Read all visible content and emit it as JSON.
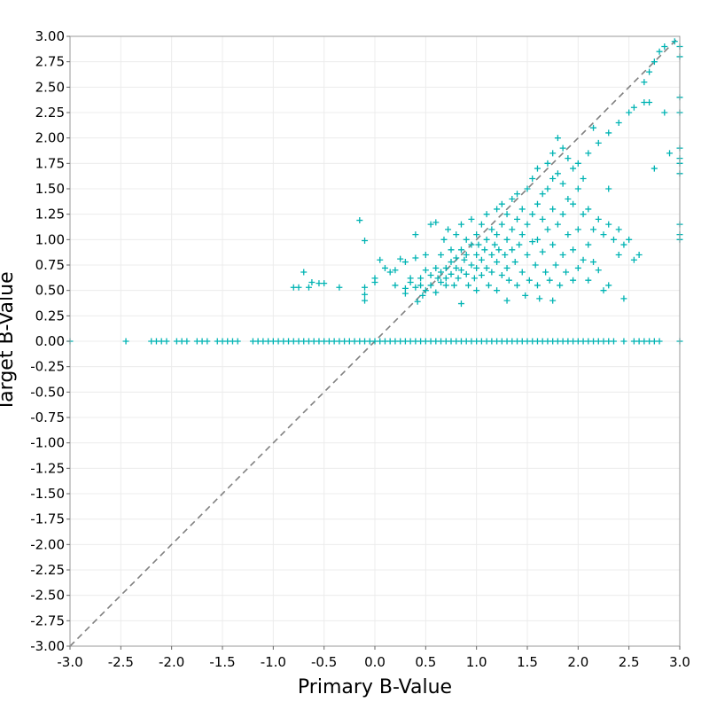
{
  "chart_data": {
    "type": "scatter",
    "xlabel": "Primary B-Value",
    "ylabel": "Target B-Value",
    "xlim": [
      -3.0,
      3.0
    ],
    "ylim": [
      -3.0,
      3.0
    ],
    "x_ticks": [
      "-3.0",
      "-2.5",
      "-2.0",
      "-1.5",
      "-1.0",
      "-0.5",
      "0.0",
      "0.5",
      "1.0",
      "1.5",
      "2.0",
      "2.5",
      "3.0"
    ],
    "y_ticks": [
      "3.00",
      "2.75",
      "2.50",
      "2.25",
      "2.00",
      "1.75",
      "1.50",
      "1.25",
      "1.00",
      "0.75",
      "0.50",
      "0.25",
      "0.00",
      "-0.25",
      "-0.50",
      "-0.75",
      "-1.00",
      "-1.25",
      "-1.50",
      "-1.75",
      "-2.00",
      "-2.25",
      "-2.50",
      "-2.75",
      "-3.00"
    ],
    "grid": true,
    "marker": "plus",
    "colors": {
      "points": "#00b3b3",
      "diagonal": "#808080",
      "grid": "#ececec",
      "frame": "#999999"
    },
    "reference_line": {
      "style": "dashed",
      "x": [
        -3.0,
        3.0
      ],
      "y": [
        -3.0,
        3.0
      ]
    },
    "series": [
      {
        "values": [
          [
            -3.0,
            0.0
          ],
          [
            -2.45,
            0.0
          ],
          [
            -2.2,
            0.0
          ],
          [
            -2.15,
            0.0
          ],
          [
            -2.1,
            0.0
          ],
          [
            -2.05,
            0.0
          ],
          [
            -1.95,
            0.0
          ],
          [
            -1.9,
            0.0
          ],
          [
            -1.85,
            0.0
          ],
          [
            -1.75,
            0.0
          ],
          [
            -1.7,
            0.0
          ],
          [
            -1.65,
            0.0
          ],
          [
            -1.55,
            0.0
          ],
          [
            -1.5,
            0.0
          ],
          [
            -1.45,
            0.0
          ],
          [
            -1.4,
            0.0
          ],
          [
            -1.35,
            0.0
          ],
          [
            -1.2,
            0.0
          ],
          [
            -1.15,
            0.0
          ],
          [
            -1.1,
            0.0
          ],
          [
            -1.05,
            0.0
          ],
          [
            -1.0,
            0.0
          ],
          [
            -0.95,
            0.0
          ],
          [
            -0.9,
            0.0
          ],
          [
            -0.85,
            0.0
          ],
          [
            -0.8,
            0.0
          ],
          [
            -0.75,
            0.0
          ],
          [
            -0.7,
            0.0
          ],
          [
            -0.65,
            0.0
          ],
          [
            -0.6,
            0.0
          ],
          [
            -0.55,
            0.0
          ],
          [
            -0.5,
            0.0
          ],
          [
            -0.45,
            0.0
          ],
          [
            -0.4,
            0.0
          ],
          [
            -0.35,
            0.0
          ],
          [
            -0.3,
            0.0
          ],
          [
            -0.25,
            0.0
          ],
          [
            -0.2,
            0.0
          ],
          [
            -0.15,
            0.0
          ],
          [
            -0.1,
            0.0
          ],
          [
            -0.05,
            0.0
          ],
          [
            0.0,
            0.0
          ],
          [
            0.05,
            0.0
          ],
          [
            0.1,
            0.0
          ],
          [
            0.15,
            0.0
          ],
          [
            0.2,
            0.0
          ],
          [
            0.25,
            0.0
          ],
          [
            0.3,
            0.0
          ],
          [
            0.35,
            0.0
          ],
          [
            0.4,
            0.0
          ],
          [
            0.45,
            0.0
          ],
          [
            0.5,
            0.0
          ],
          [
            0.55,
            0.0
          ],
          [
            0.6,
            0.0
          ],
          [
            0.65,
            0.0
          ],
          [
            0.7,
            0.0
          ],
          [
            0.75,
            0.0
          ],
          [
            0.8,
            0.0
          ],
          [
            0.85,
            0.0
          ],
          [
            0.9,
            0.0
          ],
          [
            0.95,
            0.0
          ],
          [
            1.0,
            0.0
          ],
          [
            1.05,
            0.0
          ],
          [
            1.1,
            0.0
          ],
          [
            1.15,
            0.0
          ],
          [
            1.2,
            0.0
          ],
          [
            1.25,
            0.0
          ],
          [
            1.3,
            0.0
          ],
          [
            1.35,
            0.0
          ],
          [
            1.4,
            0.0
          ],
          [
            1.45,
            0.0
          ],
          [
            1.5,
            0.0
          ],
          [
            1.55,
            0.0
          ],
          [
            1.6,
            0.0
          ],
          [
            1.65,
            0.0
          ],
          [
            1.7,
            0.0
          ],
          [
            1.75,
            0.0
          ],
          [
            1.8,
            0.0
          ],
          [
            1.85,
            0.0
          ],
          [
            1.9,
            0.0
          ],
          [
            1.95,
            0.0
          ],
          [
            2.0,
            0.0
          ],
          [
            2.05,
            0.0
          ],
          [
            2.1,
            0.0
          ],
          [
            2.15,
            0.0
          ],
          [
            2.2,
            0.0
          ],
          [
            2.25,
            0.0
          ],
          [
            2.3,
            0.0
          ],
          [
            2.35,
            0.0
          ],
          [
            2.45,
            0.0
          ],
          [
            2.55,
            0.0
          ],
          [
            2.6,
            0.0
          ],
          [
            2.65,
            0.0
          ],
          [
            2.7,
            0.0
          ],
          [
            2.75,
            0.0
          ],
          [
            2.8,
            0.0
          ],
          [
            3.0,
            0.0
          ],
          [
            -0.8,
            0.53
          ],
          [
            -0.75,
            0.53
          ],
          [
            -0.7,
            0.68
          ],
          [
            -0.65,
            0.53
          ],
          [
            -0.62,
            0.58
          ],
          [
            -0.55,
            0.57
          ],
          [
            -0.5,
            0.57
          ],
          [
            -0.35,
            0.53
          ],
          [
            -0.15,
            1.19
          ],
          [
            -0.1,
            0.99
          ],
          [
            -0.1,
            0.53
          ],
          [
            -0.1,
            0.46
          ],
          [
            -0.1,
            0.4
          ],
          [
            0.0,
            0.62
          ],
          [
            0.0,
            0.58
          ],
          [
            0.05,
            0.8
          ],
          [
            0.1,
            0.72
          ],
          [
            0.15,
            0.68
          ],
          [
            0.2,
            0.7
          ],
          [
            0.2,
            0.55
          ],
          [
            0.25,
            0.81
          ],
          [
            0.3,
            0.78
          ],
          [
            0.3,
            0.52
          ],
          [
            0.3,
            0.47
          ],
          [
            0.35,
            0.62
          ],
          [
            0.35,
            0.58
          ],
          [
            0.4,
            0.53
          ],
          [
            0.4,
            1.05
          ],
          [
            0.4,
            0.82
          ],
          [
            0.42,
            0.39
          ],
          [
            0.45,
            0.55
          ],
          [
            0.45,
            0.62
          ],
          [
            0.47,
            0.45
          ],
          [
            0.5,
            0.5
          ],
          [
            0.5,
            0.7
          ],
          [
            0.5,
            0.85
          ],
          [
            0.55,
            1.15
          ],
          [
            0.55,
            0.55
          ],
          [
            0.55,
            0.65
          ],
          [
            0.6,
            1.17
          ],
          [
            0.6,
            0.48
          ],
          [
            0.6,
            0.72
          ],
          [
            0.62,
            0.62
          ],
          [
            0.65,
            0.85
          ],
          [
            0.65,
            0.58
          ],
          [
            0.65,
            0.68
          ],
          [
            0.68,
            1.0
          ],
          [
            0.7,
            0.72
          ],
          [
            0.7,
            0.55
          ],
          [
            0.7,
            0.62
          ],
          [
            0.72,
            1.1
          ],
          [
            0.75,
            0.9
          ],
          [
            0.75,
            0.66
          ],
          [
            0.75,
            0.78
          ],
          [
            0.78,
            0.55
          ],
          [
            0.8,
            0.82
          ],
          [
            0.8,
            0.72
          ],
          [
            0.8,
            1.05
          ],
          [
            0.82,
            0.62
          ],
          [
            0.85,
            0.9
          ],
          [
            0.85,
            0.7
          ],
          [
            0.85,
            1.15
          ],
          [
            0.85,
            0.37
          ],
          [
            0.88,
            0.8
          ],
          [
            0.9,
            1.0
          ],
          [
            0.9,
            0.66
          ],
          [
            0.9,
            0.85
          ],
          [
            0.92,
            0.55
          ],
          [
            0.95,
            0.95
          ],
          [
            0.95,
            0.75
          ],
          [
            0.95,
            1.2
          ],
          [
            0.98,
            0.62
          ],
          [
            1.0,
            0.85
          ],
          [
            1.0,
            1.05
          ],
          [
            1.0,
            0.72
          ],
          [
            1.0,
            0.5
          ],
          [
            1.02,
            0.95
          ],
          [
            1.05,
            1.15
          ],
          [
            1.05,
            0.8
          ],
          [
            1.05,
            0.65
          ],
          [
            1.08,
            0.9
          ],
          [
            1.1,
            1.25
          ],
          [
            1.1,
            0.72
          ],
          [
            1.1,
            1.0
          ],
          [
            1.12,
            0.55
          ],
          [
            1.15,
            0.85
          ],
          [
            1.15,
            1.1
          ],
          [
            1.15,
            0.68
          ],
          [
            1.18,
            0.95
          ],
          [
            1.2,
            1.3
          ],
          [
            1.2,
            0.78
          ],
          [
            1.2,
            1.05
          ],
          [
            1.2,
            0.5
          ],
          [
            1.22,
            0.9
          ],
          [
            1.25,
            1.35
          ],
          [
            1.25,
            0.65
          ],
          [
            1.25,
            1.15
          ],
          [
            1.28,
            0.85
          ],
          [
            1.3,
            1.0
          ],
          [
            1.3,
            1.25
          ],
          [
            1.3,
            0.72
          ],
          [
            1.3,
            0.4
          ],
          [
            1.32,
            0.6
          ],
          [
            1.35,
            1.4
          ],
          [
            1.35,
            0.9
          ],
          [
            1.35,
            1.1
          ],
          [
            1.38,
            0.78
          ],
          [
            1.4,
            1.2
          ],
          [
            1.4,
            1.45
          ],
          [
            1.4,
            0.55
          ],
          [
            1.42,
            0.95
          ],
          [
            1.45,
            1.3
          ],
          [
            1.45,
            0.68
          ],
          [
            1.45,
            1.05
          ],
          [
            1.48,
            0.45
          ],
          [
            1.5,
            1.5
          ],
          [
            1.5,
            1.15
          ],
          [
            1.5,
            0.85
          ],
          [
            1.52,
            0.6
          ],
          [
            1.55,
            1.6
          ],
          [
            1.55,
            1.25
          ],
          [
            1.55,
            0.98
          ],
          [
            1.58,
            0.75
          ],
          [
            1.6,
            1.7
          ],
          [
            1.6,
            1.35
          ],
          [
            1.6,
            1.0
          ],
          [
            1.6,
            0.55
          ],
          [
            1.62,
            0.42
          ],
          [
            1.65,
            1.45
          ],
          [
            1.65,
            1.2
          ],
          [
            1.65,
            0.88
          ],
          [
            1.68,
            0.68
          ],
          [
            1.7,
            1.75
          ],
          [
            1.7,
            1.5
          ],
          [
            1.7,
            1.1
          ],
          [
            1.72,
            0.6
          ],
          [
            1.75,
            1.85
          ],
          [
            1.75,
            1.6
          ],
          [
            1.75,
            1.3
          ],
          [
            1.75,
            0.95
          ],
          [
            1.75,
            0.4
          ],
          [
            1.78,
            0.75
          ],
          [
            1.8,
            2.0
          ],
          [
            1.8,
            1.65
          ],
          [
            1.8,
            1.15
          ],
          [
            1.82,
            0.55
          ],
          [
            1.85,
            1.9
          ],
          [
            1.85,
            1.55
          ],
          [
            1.85,
            1.25
          ],
          [
            1.85,
            0.85
          ],
          [
            1.88,
            0.68
          ],
          [
            1.9,
            1.8
          ],
          [
            1.9,
            1.4
          ],
          [
            1.9,
            1.05
          ],
          [
            1.95,
            1.7
          ],
          [
            1.95,
            1.35
          ],
          [
            1.95,
            0.9
          ],
          [
            1.95,
            0.6
          ],
          [
            2.0,
            1.75
          ],
          [
            2.0,
            1.5
          ],
          [
            2.0,
            1.1
          ],
          [
            2.0,
            0.72
          ],
          [
            2.05,
            1.6
          ],
          [
            2.05,
            1.25
          ],
          [
            2.05,
            0.8
          ],
          [
            2.1,
            1.85
          ],
          [
            2.1,
            1.3
          ],
          [
            2.1,
            0.95
          ],
          [
            2.1,
            0.6
          ],
          [
            2.15,
            2.1
          ],
          [
            2.15,
            1.1
          ],
          [
            2.15,
            0.78
          ],
          [
            2.2,
            1.95
          ],
          [
            2.2,
            1.2
          ],
          [
            2.2,
            0.7
          ],
          [
            2.25,
            1.05
          ],
          [
            2.25,
            0.5
          ],
          [
            2.3,
            2.05
          ],
          [
            2.3,
            1.5
          ],
          [
            2.3,
            1.15
          ],
          [
            2.3,
            0.55
          ],
          [
            2.35,
            1.0
          ],
          [
            2.4,
            2.15
          ],
          [
            2.4,
            1.1
          ],
          [
            2.4,
            0.85
          ],
          [
            2.45,
            0.95
          ],
          [
            2.45,
            0.42
          ],
          [
            2.5,
            2.25
          ],
          [
            2.5,
            1.0
          ],
          [
            2.55,
            2.3
          ],
          [
            2.55,
            0.8
          ],
          [
            2.6,
            0.85
          ],
          [
            2.65,
            2.35
          ],
          [
            2.65,
            2.55
          ],
          [
            2.7,
            2.35
          ],
          [
            2.7,
            2.65
          ],
          [
            2.75,
            1.7
          ],
          [
            2.75,
            2.75
          ],
          [
            2.8,
            2.85
          ],
          [
            2.85,
            2.9
          ],
          [
            2.85,
            2.25
          ],
          [
            2.9,
            1.85
          ],
          [
            2.95,
            2.95
          ],
          [
            3.0,
            2.9
          ],
          [
            3.0,
            2.8
          ],
          [
            3.0,
            2.4
          ],
          [
            3.0,
            2.25
          ],
          [
            3.0,
            1.9
          ],
          [
            3.0,
            1.8
          ],
          [
            3.0,
            1.75
          ],
          [
            3.0,
            1.65
          ],
          [
            3.0,
            1.15
          ],
          [
            3.0,
            1.05
          ],
          [
            3.0,
            1.0
          ]
        ]
      }
    ]
  }
}
